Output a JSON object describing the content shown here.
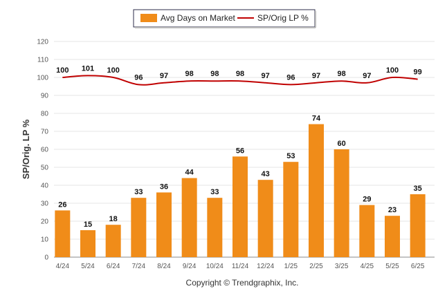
{
  "chart_data": {
    "type": "bar",
    "title": "",
    "ylabel": "SP/Orig. LP %",
    "xlabel": "",
    "ylim": [
      0,
      120
    ],
    "yticks": [
      0,
      10,
      20,
      30,
      40,
      50,
      60,
      70,
      80,
      90,
      100,
      110,
      120
    ],
    "categories": [
      "4/24",
      "5/24",
      "6/24",
      "7/24",
      "8/24",
      "9/24",
      "10/24",
      "11/24",
      "12/24",
      "1/25",
      "2/25",
      "3/25",
      "4/25",
      "5/25",
      "6/25"
    ],
    "series": [
      {
        "name": "Avg Days on Market",
        "type": "bar",
        "color": "#f08c19",
        "values": [
          26,
          15,
          18,
          33,
          36,
          44,
          33,
          56,
          43,
          53,
          74,
          60,
          29,
          23,
          35
        ]
      },
      {
        "name": "SP/Orig LP %",
        "type": "line",
        "color": "#c00000",
        "values": [
          100,
          101,
          100,
          96,
          97,
          98,
          98,
          98,
          97,
          96,
          97,
          98,
          97,
          100,
          99
        ]
      }
    ],
    "legend_position": "top-center",
    "grid": true
  },
  "footer": {
    "copyright": "Copyright © Trendgraphix, Inc."
  }
}
